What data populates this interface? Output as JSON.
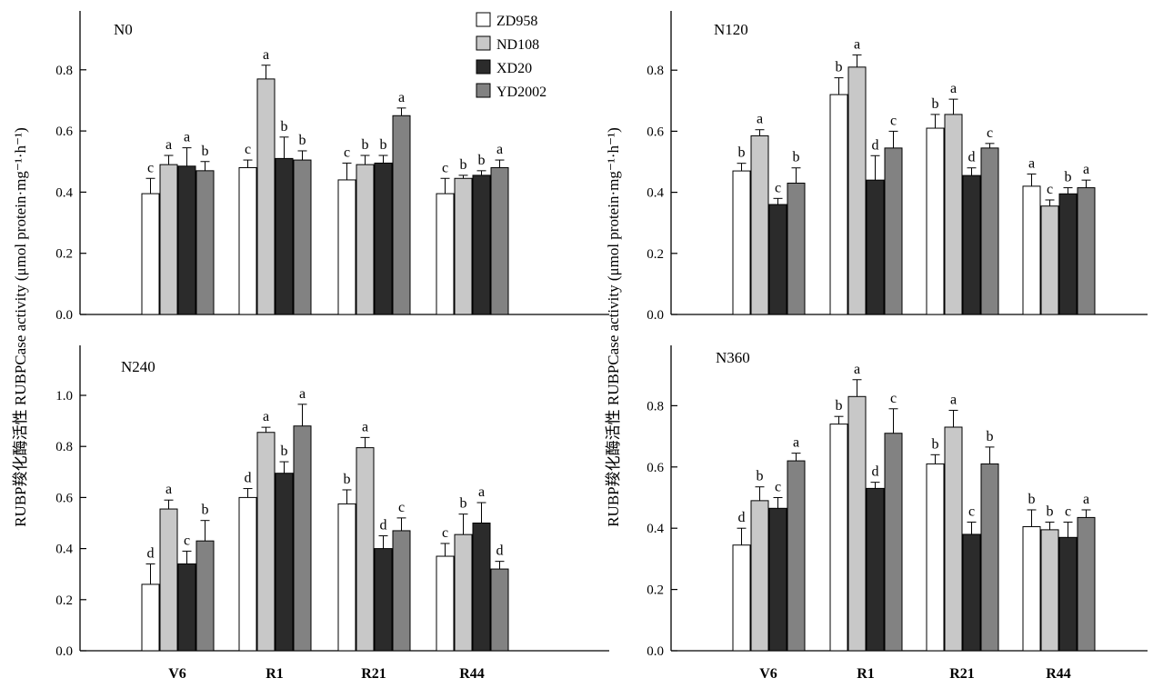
{
  "y_axis_label": "RUBP羧化酶活性 RUBPCase  activity (μmol protein·mg⁻¹·h⁻¹)",
  "legend": [
    {
      "name": "ZD958",
      "color": "#ffffff"
    },
    {
      "name": "ND108",
      "color": "#c8c8c8"
    },
    {
      "name": "XD20",
      "color": "#2b2b2b"
    },
    {
      "name": "YD2002",
      "color": "#828282"
    }
  ],
  "chart_data": [
    {
      "type": "bar",
      "title": "N0",
      "categories": [
        "V6",
        "R1",
        "R21",
        "R44"
      ],
      "ylim": [
        0,
        1.0
      ],
      "yticks": [
        "0.0",
        "0.2",
        "0.4",
        "0.6",
        "0.8"
      ],
      "series": [
        {
          "name": "ZD958",
          "values": [
            0.395,
            0.48,
            0.44,
            0.395
          ],
          "errors": [
            0.05,
            0.025,
            0.055,
            0.05
          ],
          "letters": [
            "c",
            "c",
            "c",
            "c"
          ]
        },
        {
          "name": "ND108",
          "values": [
            0.49,
            0.77,
            0.49,
            0.445
          ],
          "errors": [
            0.03,
            0.045,
            0.03,
            0.01
          ],
          "letters": [
            "a",
            "a",
            "b",
            "b"
          ]
        },
        {
          "name": "XD20",
          "values": [
            0.485,
            0.51,
            0.495,
            0.455
          ],
          "errors": [
            0.06,
            0.07,
            0.025,
            0.015
          ],
          "letters": [
            "a",
            "b",
            "b",
            "b"
          ]
        },
        {
          "name": "YD2002",
          "values": [
            0.47,
            0.505,
            0.65,
            0.48
          ],
          "errors": [
            0.03,
            0.03,
            0.025,
            0.025
          ],
          "letters": [
            "b",
            "b",
            "a",
            "a"
          ]
        }
      ]
    },
    {
      "type": "bar",
      "title": "N120",
      "categories": [
        "V6",
        "R1",
        "R21",
        "R44"
      ],
      "ylim": [
        0,
        1.0
      ],
      "yticks": [
        "0.0",
        "0.2",
        "0.4",
        "0.6",
        "0.8"
      ],
      "series": [
        {
          "name": "ZD958",
          "values": [
            0.47,
            0.72,
            0.61,
            0.42
          ],
          "errors": [
            0.025,
            0.055,
            0.045,
            0.04
          ],
          "letters": [
            "b",
            "b",
            "b",
            "a"
          ]
        },
        {
          "name": "ND108",
          "values": [
            0.585,
            0.81,
            0.655,
            0.355
          ],
          "errors": [
            0.02,
            0.04,
            0.05,
            0.02
          ],
          "letters": [
            "a",
            "a",
            "a",
            "c"
          ]
        },
        {
          "name": "XD20",
          "values": [
            0.36,
            0.44,
            0.455,
            0.395
          ],
          "errors": [
            0.02,
            0.08,
            0.025,
            0.02
          ],
          "letters": [
            "c",
            "d",
            "d",
            "b"
          ]
        },
        {
          "name": "YD2002",
          "values": [
            0.43,
            0.545,
            0.545,
            0.415
          ],
          "errors": [
            0.05,
            0.055,
            0.015,
            0.025
          ],
          "letters": [
            "b",
            "c",
            "c",
            "a"
          ]
        }
      ]
    },
    {
      "type": "bar",
      "title": "N240",
      "categories": [
        "V6",
        "R1",
        "R21",
        "R44"
      ],
      "ylim": [
        0,
        1.2
      ],
      "yticks": [
        "0.0",
        "0.2",
        "0.4",
        "0.6",
        "0.8",
        "1.0"
      ],
      "series": [
        {
          "name": "ZD958",
          "values": [
            0.26,
            0.6,
            0.575,
            0.37
          ],
          "errors": [
            0.08,
            0.035,
            0.055,
            0.05
          ],
          "letters": [
            "d",
            "d",
            "b",
            "c"
          ]
        },
        {
          "name": "ND108",
          "values": [
            0.555,
            0.855,
            0.795,
            0.455
          ],
          "errors": [
            0.035,
            0.02,
            0.04,
            0.08
          ],
          "letters": [
            "a",
            "a",
            "a",
            "b"
          ]
        },
        {
          "name": "XD20",
          "values": [
            0.34,
            0.695,
            0.4,
            0.5
          ],
          "errors": [
            0.05,
            0.045,
            0.05,
            0.08
          ],
          "letters": [
            "c",
            "b",
            "d",
            "a"
          ]
        },
        {
          "name": "YD2002",
          "values": [
            0.43,
            0.88,
            0.47,
            0.32
          ],
          "errors": [
            0.08,
            0.085,
            0.05,
            0.03
          ],
          "letters": [
            "b",
            "a",
            "c",
            "d"
          ]
        }
      ]
    },
    {
      "type": "bar",
      "title": "N360",
      "categories": [
        "V6",
        "R1",
        "R21",
        "R44"
      ],
      "ylim": [
        0,
        1.0
      ],
      "yticks": [
        "0.0",
        "0.2",
        "0.4",
        "0.6",
        "0.8"
      ],
      "series": [
        {
          "name": "ZD958",
          "values": [
            0.345,
            0.74,
            0.61,
            0.405
          ],
          "errors": [
            0.055,
            0.025,
            0.03,
            0.055
          ],
          "letters": [
            "d",
            "b",
            "b",
            "b"
          ]
        },
        {
          "name": "ND108",
          "values": [
            0.49,
            0.83,
            0.73,
            0.395
          ],
          "errors": [
            0.045,
            0.055,
            0.055,
            0.025
          ],
          "letters": [
            "b",
            "a",
            "a",
            "b"
          ]
        },
        {
          "name": "XD20",
          "values": [
            0.465,
            0.53,
            0.38,
            0.37
          ],
          "errors": [
            0.035,
            0.02,
            0.04,
            0.05
          ],
          "letters": [
            "c",
            "d",
            "c",
            "c"
          ]
        },
        {
          "name": "YD2002",
          "values": [
            0.62,
            0.71,
            0.61,
            0.435
          ],
          "errors": [
            0.025,
            0.08,
            0.055,
            0.025
          ],
          "letters": [
            "a",
            "c",
            "b",
            "a"
          ]
        }
      ]
    }
  ]
}
